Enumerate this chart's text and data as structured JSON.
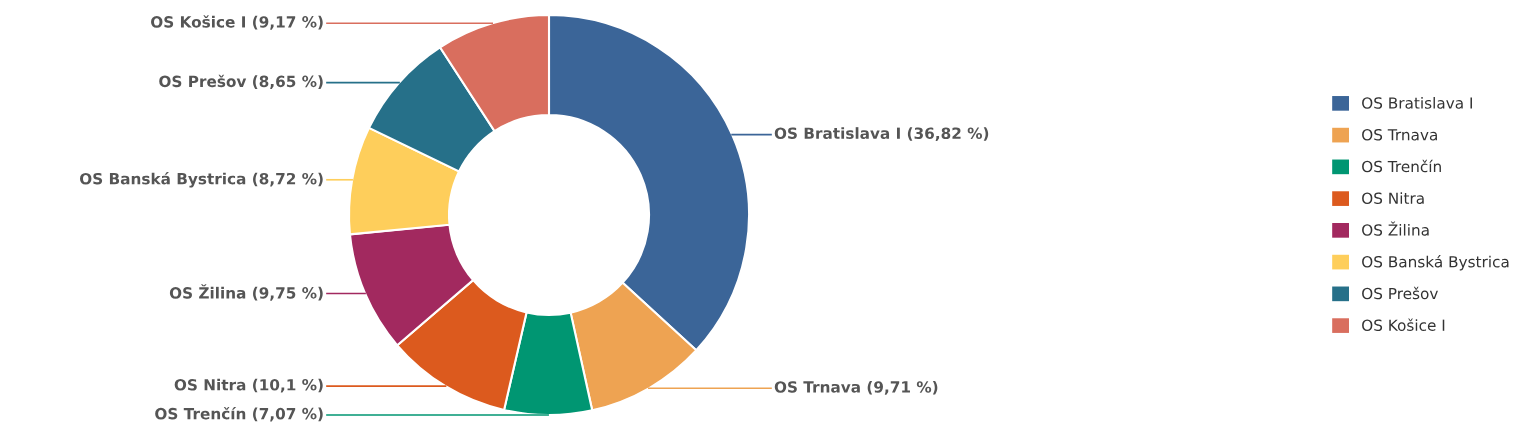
{
  "chart_data": {
    "type": "donut",
    "categories": [
      "OS Bratislava I",
      "OS Trnava",
      "OS Trenčín",
      "OS Nitra",
      "OS Žilina",
      "OS Banská Bystrica",
      "OS Prešov",
      "OS Košice I"
    ],
    "values": [
      36.82,
      9.71,
      7.07,
      10.1,
      9.75,
      8.72,
      8.65,
      9.17
    ],
    "colors": [
      "#3b6598",
      "#eea352",
      "#009672",
      "#dc5a1e",
      "#a2295f",
      "#fece5b",
      "#267089",
      "#d96e5e"
    ],
    "value_labels": [
      "OS Bratislava I (36,82 %)",
      "OS Trnava (9,71 %)",
      "OS Trenčín (7,07 %)",
      "OS Nitra (10,1 %)",
      "OS Žilina (9,75 %)",
      "OS Banská Bystrica (8,72 %)",
      "OS Prešov (8,65 %)",
      "OS Košice I (9,17 %)"
    ],
    "legend": "right"
  }
}
